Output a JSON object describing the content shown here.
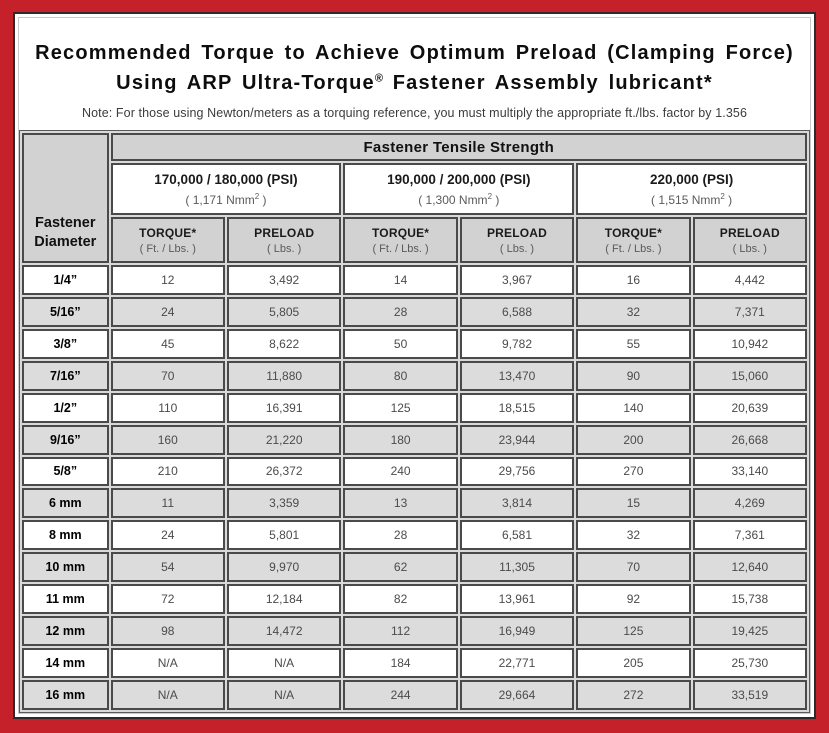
{
  "colors": {
    "frame_red": "#c5212b",
    "header_gray": "#d2d2d2",
    "stripe_gray": "#dcdcdc",
    "border_dark": "#4a4a4a"
  },
  "title": {
    "line1": "Recommended Torque to Achieve Optimum Preload (Clamping Force)",
    "line2_pre": "Using ARP Ultra-Torque",
    "line2_sup": "®",
    "line2_post": " Fastener Assembly lubricant*",
    "note": "Note: For those using Newton/meters as a torquing reference, you must multiply the appropriate ft./lbs. factor by 1.356"
  },
  "table": {
    "corner_header": "Fastener Diameter",
    "group_header": "Fastener Tensile Strength",
    "strength_groups": [
      {
        "psi": "170,000 / 180,000 (PSI)",
        "nmm_pre": "( 1,171 Nmm",
        "nmm_sup": "2",
        "nmm_post": " )"
      },
      {
        "psi": "190,000 / 200,000 (PSI)",
        "nmm_pre": "( 1,300 Nmm",
        "nmm_sup": "2",
        "nmm_post": " )"
      },
      {
        "psi": "220,000 (PSI)",
        "nmm_pre": "( 1,515 Nmm",
        "nmm_sup": "2",
        "nmm_post": " )"
      }
    ],
    "column_headers": [
      {
        "label": "TORQUE*",
        "unit": "( Ft. / Lbs. )"
      },
      {
        "label": "PRELOAD",
        "unit": "( Lbs. )"
      },
      {
        "label": "TORQUE*",
        "unit": "( Ft. / Lbs. )"
      },
      {
        "label": "PRELOAD",
        "unit": "( Lbs. )"
      },
      {
        "label": "TORQUE*",
        "unit": "( Ft. / Lbs. )"
      },
      {
        "label": "PRELOAD",
        "unit": "( Lbs. )"
      }
    ],
    "rows": [
      {
        "diameter": "1/4”",
        "values": [
          "12",
          "3,492",
          "14",
          "3,967",
          "16",
          "4,442"
        ]
      },
      {
        "diameter": "5/16”",
        "values": [
          "24",
          "5,805",
          "28",
          "6,588",
          "32",
          "7,371"
        ]
      },
      {
        "diameter": "3/8”",
        "values": [
          "45",
          "8,622",
          "50",
          "9,782",
          "55",
          "10,942"
        ]
      },
      {
        "diameter": "7/16”",
        "values": [
          "70",
          "11,880",
          "80",
          "13,470",
          "90",
          "15,060"
        ]
      },
      {
        "diameter": "1/2”",
        "values": [
          "110",
          "16,391",
          "125",
          "18,515",
          "140",
          "20,639"
        ]
      },
      {
        "diameter": "9/16”",
        "values": [
          "160",
          "21,220",
          "180",
          "23,944",
          "200",
          "26,668"
        ]
      },
      {
        "diameter": "5/8”",
        "values": [
          "210",
          "26,372",
          "240",
          "29,756",
          "270",
          "33,140"
        ]
      },
      {
        "diameter": "6 mm",
        "values": [
          "11",
          "3,359",
          "13",
          "3,814",
          "15",
          "4,269"
        ]
      },
      {
        "diameter": "8 mm",
        "values": [
          "24",
          "5,801",
          "28",
          "6,581",
          "32",
          "7,361"
        ]
      },
      {
        "diameter": "10 mm",
        "values": [
          "54",
          "9,970",
          "62",
          "11,305",
          "70",
          "12,640"
        ]
      },
      {
        "diameter": "11 mm",
        "values": [
          "72",
          "12,184",
          "82",
          "13,961",
          "92",
          "15,738"
        ]
      },
      {
        "diameter": "12 mm",
        "values": [
          "98",
          "14,472",
          "112",
          "16,949",
          "125",
          "19,425"
        ]
      },
      {
        "diameter": "14 mm",
        "values": [
          "N/A",
          "N/A",
          "184",
          "22,771",
          "205",
          "25,730"
        ]
      },
      {
        "diameter": "16 mm",
        "values": [
          "N/A",
          "N/A",
          "244",
          "29,664",
          "272",
          "33,519"
        ]
      }
    ]
  }
}
